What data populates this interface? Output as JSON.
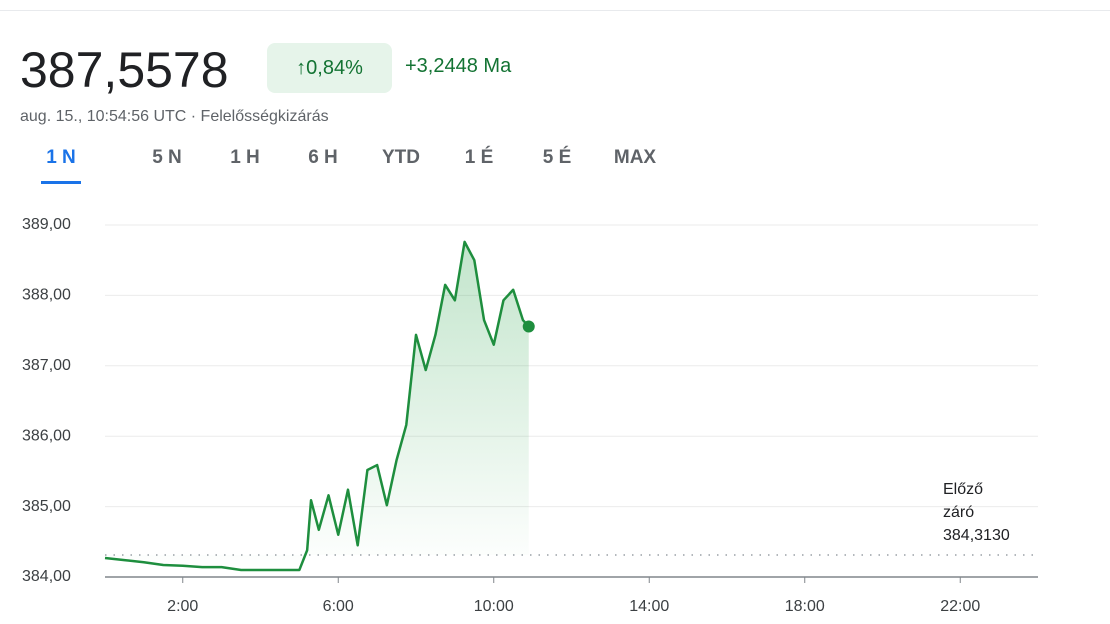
{
  "header": {
    "price": "387,5578",
    "change_percent": "0,84%",
    "change_value": "+3,2448 Ma",
    "timestamp": "aug. 15., 10:54:56 UTC",
    "disclaimer": "Felelősségkizárás"
  },
  "tabs": [
    "1 N",
    "5 N",
    "1 H",
    "6 H",
    "YTD",
    "1 É",
    "5 É",
    "MAX"
  ],
  "chart_data": {
    "type": "line",
    "x": [
      0,
      0.5,
      1,
      1.5,
      2,
      2.5,
      3,
      3.5,
      4,
      4.5,
      5,
      5.2,
      5.3,
      5.5,
      5.75,
      6,
      6.25,
      6.5,
      6.75,
      7,
      7.25,
      7.5,
      7.75,
      8,
      8.25,
      8.5,
      8.75,
      9,
      9.25,
      9.5,
      9.75,
      10,
      10.25,
      10.5,
      10.75,
      10.9
    ],
    "series": [
      {
        "color": "#1e8e3e",
        "values": [
          384.27,
          384.24,
          384.21,
          384.17,
          384.16,
          384.14,
          384.14,
          384.1,
          384.1,
          384.1,
          384.1,
          384.38,
          385.09,
          384.67,
          385.16,
          384.6,
          385.24,
          384.45,
          385.52,
          385.59,
          385.02,
          385.66,
          386.16,
          387.44,
          386.94,
          387.44,
          388.15,
          387.93,
          388.76,
          388.5,
          387.65,
          387.3,
          387.93,
          388.08,
          387.65,
          387.5578
        ]
      }
    ],
    "xlim": [
      0,
      24
    ],
    "xticks": [
      {
        "value": 2,
        "label": "2:00"
      },
      {
        "value": 6,
        "label": "6:00"
      },
      {
        "value": 10,
        "label": "10:00"
      },
      {
        "value": 14,
        "label": "14:00"
      },
      {
        "value": 18,
        "label": "18:00"
      },
      {
        "value": 22,
        "label": "22:00"
      }
    ],
    "ylim": [
      384,
      389
    ],
    "yticks": [
      {
        "value": 384,
        "label": "384,00"
      },
      {
        "value": 385,
        "label": "385,00"
      },
      {
        "value": 386,
        "label": "386,00"
      },
      {
        "value": 387,
        "label": "387,00"
      },
      {
        "value": 388,
        "label": "388,00"
      },
      {
        "value": 389,
        "label": "389,00"
      }
    ],
    "grid": true,
    "reference_line": {
      "label": "Előző záró",
      "value": 384.313,
      "value_label": "384,3130"
    }
  }
}
